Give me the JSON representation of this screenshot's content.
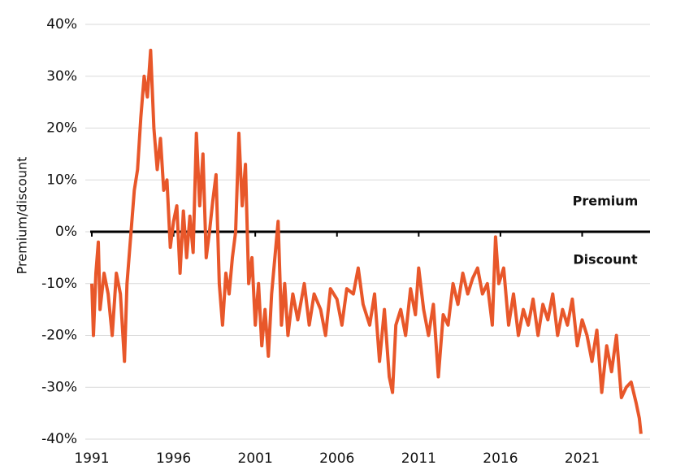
{
  "chart_data": {
    "type": "line",
    "y_label": "Premium/discount",
    "annotations": [
      "Premium",
      "Discount"
    ],
    "x": [
      1991.0,
      1991.1,
      1991.25,
      1991.4,
      1991.5,
      1991.75,
      1992.0,
      1992.25,
      1992.5,
      1992.75,
      1993.0,
      1993.15,
      1993.4,
      1993.6,
      1993.8,
      1994.0,
      1994.2,
      1994.4,
      1994.6,
      1994.8,
      1995.0,
      1995.2,
      1995.4,
      1995.6,
      1995.8,
      1996.0,
      1996.2,
      1996.4,
      1996.6,
      1996.8,
      1997.0,
      1997.2,
      1997.4,
      1997.6,
      1997.8,
      1998.0,
      1998.2,
      1998.4,
      1998.6,
      1998.8,
      1999.0,
      1999.2,
      1999.4,
      1999.6,
      1999.8,
      2000.0,
      2000.2,
      2000.4,
      2000.6,
      2000.8,
      2001.0,
      2001.2,
      2001.4,
      2001.6,
      2001.8,
      2002.0,
      2002.2,
      2002.4,
      2002.6,
      2002.8,
      2003.0,
      2003.3,
      2003.6,
      2004.0,
      2004.3,
      2004.6,
      2005.0,
      2005.3,
      2005.6,
      2006.0,
      2006.3,
      2006.6,
      2007.0,
      2007.3,
      2007.6,
      2008.0,
      2008.3,
      2008.6,
      2008.9,
      2009.2,
      2009.4,
      2009.6,
      2009.9,
      2010.2,
      2010.5,
      2010.8,
      2011.0,
      2011.3,
      2011.6,
      2011.9,
      2012.2,
      2012.5,
      2012.8,
      2013.1,
      2013.4,
      2013.7,
      2014.0,
      2014.3,
      2014.6,
      2014.9,
      2015.2,
      2015.5,
      2015.7,
      2015.9,
      2016.2,
      2016.5,
      2016.8,
      2017.1,
      2017.4,
      2017.7,
      2018.0,
      2018.3,
      2018.6,
      2018.9,
      2019.2,
      2019.5,
      2019.8,
      2020.1,
      2020.4,
      2020.7,
      2021.0,
      2021.3,
      2021.6,
      2021.9,
      2022.2,
      2022.5,
      2022.8,
      2023.1,
      2023.4,
      2023.7,
      2024.0,
      2024.3,
      2024.5,
      2024.6
    ],
    "series": [
      {
        "color": "#e8572a",
        "values": [
          -10,
          -20,
          -8,
          -2,
          -15,
          -8,
          -12,
          -20,
          -8,
          -12,
          -25,
          -10,
          0,
          8,
          12,
          22,
          30,
          26,
          35,
          20,
          12,
          18,
          8,
          10,
          -3,
          2,
          5,
          -8,
          4,
          -5,
          3,
          -4,
          19,
          5,
          15,
          -5,
          0,
          6,
          11,
          -10,
          -18,
          -8,
          -12,
          -5,
          0,
          19,
          5,
          13,
          -10,
          -5,
          -18,
          -10,
          -22,
          -15,
          -24,
          -12,
          -5,
          2,
          -18,
          -10,
          -20,
          -12,
          -17,
          -10,
          -18,
          -12,
          -15,
          -20,
          -11,
          -13,
          -18,
          -11,
          -12,
          -7,
          -14,
          -18,
          -12,
          -25,
          -15,
          -28,
          -31,
          -18,
          -15,
          -20,
          -11,
          -16,
          -7,
          -15,
          -20,
          -14,
          -28,
          -16,
          -18,
          -10,
          -14,
          -8,
          -12,
          -9,
          -7,
          -12,
          -10,
          -18,
          -1,
          -10,
          -7,
          -18,
          -12,
          -20,
          -15,
          -18,
          -13,
          -20,
          -14,
          -17,
          -12,
          -20,
          -15,
          -18,
          -13,
          -22,
          -17,
          -20,
          -25,
          -19,
          -31,
          -22,
          -27,
          -20,
          -32,
          -30,
          -29,
          -33,
          -36,
          -39
        ]
      }
    ],
    "xlim": [
      1991,
      2025.3
    ],
    "xticks": [
      1991,
      1996,
      2001,
      2006,
      2011,
      2016,
      2021
    ],
    "ylim": [
      -40,
      40
    ],
    "yticks": [
      {
        "value": -40,
        "label": "-40%"
      },
      {
        "value": -30,
        "label": "-30%"
      },
      {
        "value": -20,
        "label": "-20%"
      },
      {
        "value": -10,
        "label": "-10%"
      },
      {
        "value": 0,
        "label": "0%"
      },
      {
        "value": 10,
        "label": "10%"
      },
      {
        "value": 20,
        "label": "20%"
      },
      {
        "value": 30,
        "label": "30%"
      },
      {
        "value": 40,
        "label": "40%"
      }
    ],
    "grid": true
  }
}
